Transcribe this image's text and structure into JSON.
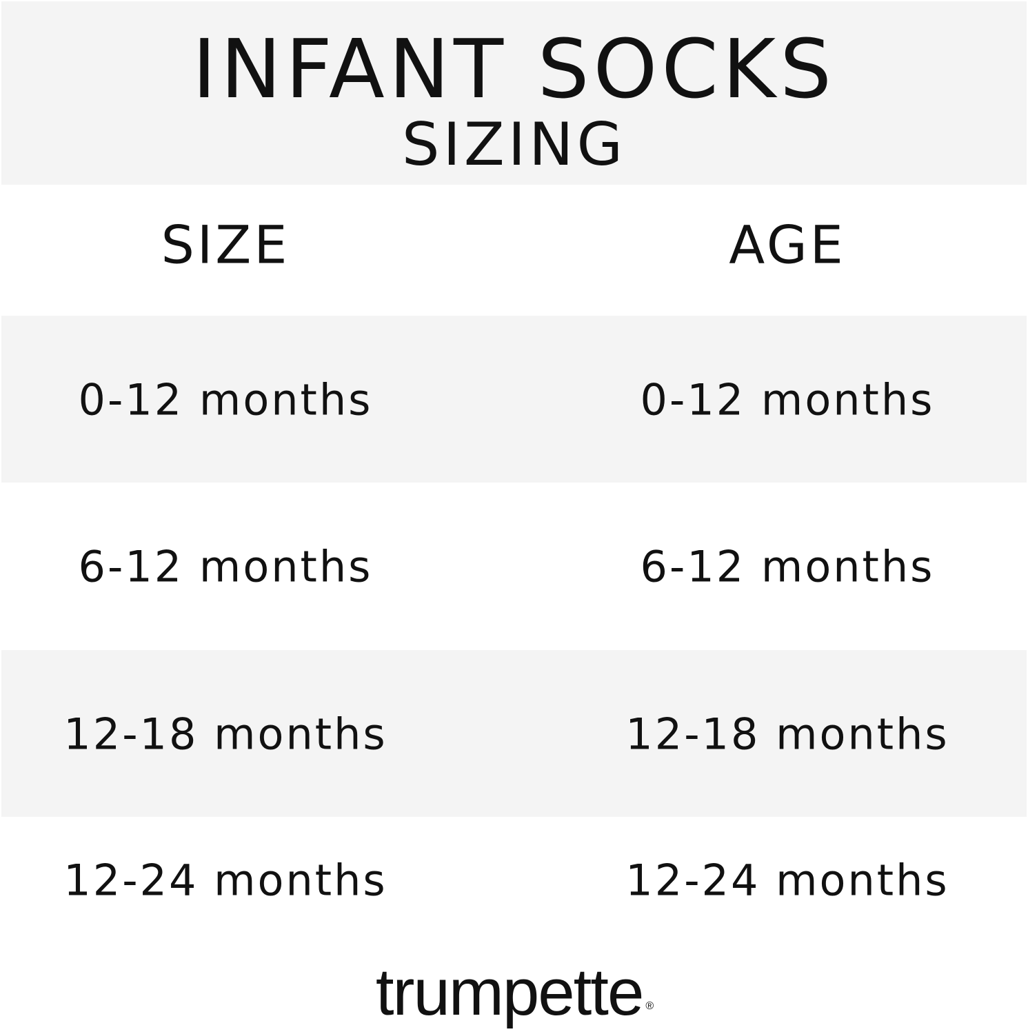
{
  "header": {
    "title": "INFANT SOCKS",
    "subtitle": "SIZING"
  },
  "table": {
    "columns": [
      "SIZE",
      "AGE"
    ],
    "rows": [
      [
        "0-12 months",
        "0-12 months"
      ],
      [
        "6-12 months",
        "6-12 months"
      ],
      [
        "12-18 months",
        "12-18 months"
      ],
      [
        "12-24 months",
        "12-24 months"
      ]
    ]
  },
  "brand": {
    "logo_text": "trumpette",
    "registered_mark": "®"
  },
  "colors": {
    "band": "#f4f4f4",
    "text": "#111111",
    "background": "#ffffff"
  }
}
